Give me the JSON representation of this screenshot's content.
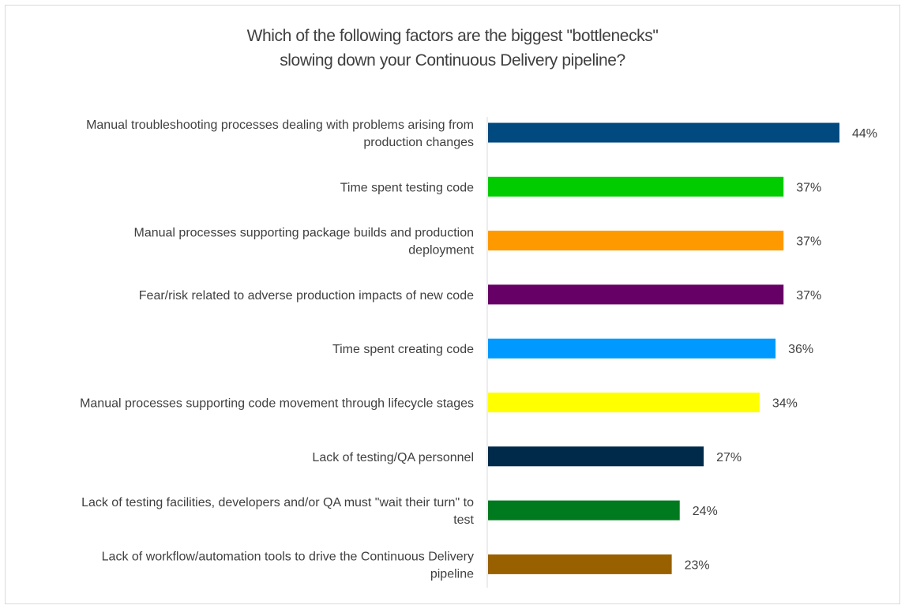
{
  "chart_data": {
    "type": "bar",
    "orientation": "horizontal",
    "title_lines": [
      "Which of the following factors are the biggest \"bottlenecks\"",
      "slowing down your Continuous Delivery pipeline?"
    ],
    "categories": [
      [
        "Manual troubleshooting processes dealing with problems arising from",
        "production changes"
      ],
      [
        "Time spent testing code"
      ],
      [
        "Manual processes supporting package builds and production",
        "deployment"
      ],
      [
        "Fear/risk related to adverse production impacts of new code"
      ],
      [
        "Time spent creating code"
      ],
      [
        "Manual processes supporting code movement through lifecycle stages"
      ],
      [
        "Lack of testing/QA personnel"
      ],
      [
        "Lack of testing facilities, developers and/or QA must \"wait their turn\" to",
        "test"
      ],
      [
        "Lack of workflow/automation tools to drive the Continuous Delivery",
        "pipeline"
      ]
    ],
    "values": [
      44,
      37,
      37,
      37,
      36,
      34,
      27,
      24,
      23
    ],
    "value_labels": [
      "44%",
      "37%",
      "37%",
      "37%",
      "36%",
      "34%",
      "27%",
      "24%",
      "23%"
    ],
    "colors": [
      "#004a7f",
      "#00cc00",
      "#ff9900",
      "#660066",
      "#0099ff",
      "#ffff00",
      "#002a4a",
      "#007a1f",
      "#996000"
    ],
    "xlim": [
      0,
      44
    ],
    "grid": false,
    "legend": "none"
  }
}
